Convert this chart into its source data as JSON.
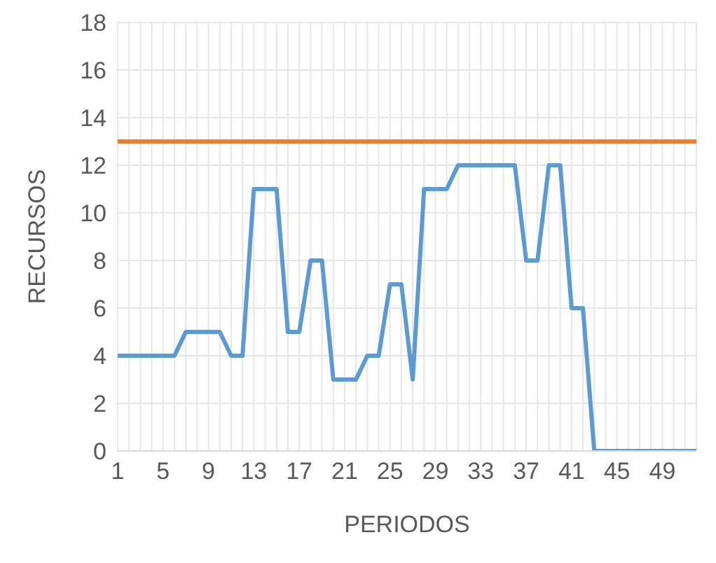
{
  "chart_data": {
    "type": "line",
    "xlabel": "PERIODOS",
    "ylabel": "RECURSOS",
    "categories": [
      "1",
      null,
      null,
      null,
      "5",
      null,
      null,
      null,
      "9",
      null,
      null,
      null,
      "13",
      null,
      null,
      null,
      "17",
      null,
      null,
      null,
      "21",
      null,
      null,
      null,
      "25",
      null,
      null,
      null,
      "29",
      null,
      null,
      null,
      "33",
      null,
      null,
      null,
      "37",
      null,
      null,
      null,
      "41",
      null,
      null,
      null,
      "45",
      null,
      null,
      null,
      "49",
      null,
      null,
      null
    ],
    "series": [
      {
        "color": "#5b9bd5",
        "values": [
          4,
          4,
          4,
          4,
          4,
          4,
          5,
          5,
          5,
          5,
          4,
          4,
          11,
          11,
          11,
          5,
          5,
          8,
          8,
          3,
          3,
          3,
          4,
          4,
          7,
          7,
          3,
          11,
          11,
          11,
          12,
          12,
          12,
          12,
          12,
          12,
          8,
          8,
          12,
          12,
          6,
          6,
          0,
          0,
          0,
          0,
          0,
          0,
          0,
          0,
          0,
          0
        ]
      }
    ],
    "ref_lines": [
      {
        "axis": "y",
        "value": 13,
        "color": "#ed7d31"
      }
    ],
    "ylim": [
      0,
      18
    ],
    "yticks": [
      0,
      2,
      4,
      6,
      8,
      10,
      12,
      14,
      16,
      18
    ],
    "grid": true,
    "legend": false,
    "marker": "none",
    "line_style": "solid"
  }
}
